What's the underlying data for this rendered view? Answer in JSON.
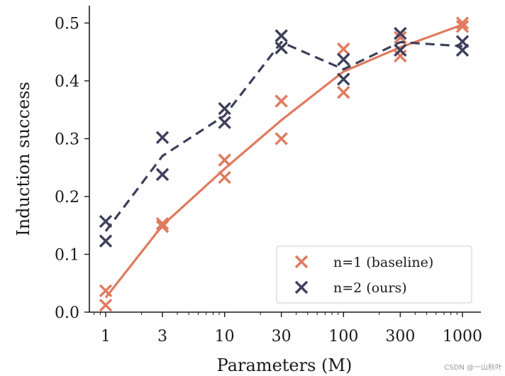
{
  "chart_data": {
    "type": "line",
    "xscale": "log",
    "x": [
      1,
      3,
      10,
      30,
      100,
      300,
      1000
    ],
    "x_tick_labels": [
      "1",
      "3",
      "10",
      "30",
      "100",
      "300",
      "1000"
    ],
    "xlabel": "Parameters (M)",
    "ylabel": "Induction success",
    "ylim": [
      0.0,
      0.53
    ],
    "y_ticks": [
      0.0,
      0.1,
      0.2,
      0.3,
      0.4,
      0.5
    ],
    "y_tick_labels": [
      "0.0",
      "0.1",
      "0.2",
      "0.3",
      "0.4",
      "0.5"
    ],
    "legend_position": "lower-right",
    "series": [
      {
        "name": "n=1 (baseline)",
        "color": "#E07A5F",
        "line_style": "solid",
        "mean": [
          0.025,
          0.15,
          0.248,
          0.332,
          0.416,
          0.458,
          0.497
        ],
        "runs": [
          [
            0.037,
            0.148,
            0.263,
            0.365,
            0.455,
            0.475,
            0.5
          ],
          [
            0.012,
            0.153,
            0.233,
            0.3,
            0.38,
            0.443,
            0.494
          ]
        ]
      },
      {
        "name": "n=2 (ours)",
        "color": "#3D405B",
        "line_style": "dashed",
        "mean": [
          0.14,
          0.27,
          0.34,
          0.467,
          0.42,
          0.467,
          0.46
        ],
        "runs": [
          [
            0.157,
            0.302,
            0.352,
            0.478,
            0.437,
            0.482,
            0.468
          ],
          [
            0.123,
            0.238,
            0.328,
            0.457,
            0.403,
            0.453,
            0.453
          ]
        ]
      }
    ]
  },
  "watermark": "CSDN @一山秋叶"
}
